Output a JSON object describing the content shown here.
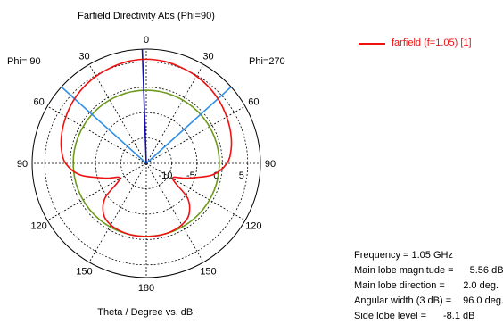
{
  "chart_data": {
    "type": "polar",
    "title": "Farfield Directivity Abs (Phi=90)",
    "xlabel": "Theta / Degree vs. dBi",
    "phi_left_label": "Phi= 90",
    "phi_right_label": "Phi=270",
    "angle_ticks": [
      "0",
      "30",
      "60",
      "90",
      "120",
      "150",
      "180",
      "150",
      "120",
      "90",
      "60",
      "30"
    ],
    "radial_ticks": [
      "-10",
      "-5",
      "0",
      "5"
    ],
    "r_range_dBi": [
      -15,
      7.5
    ],
    "series": [
      {
        "name": "farfield (f=1.05) [1]",
        "color": "#ee1111",
        "theta_deg": [
          0,
          10,
          20,
          30,
          40,
          50,
          60,
          70,
          80,
          90,
          100,
          110,
          120,
          130,
          140,
          150,
          160,
          170,
          180,
          190,
          200,
          210,
          220,
          230,
          240,
          250,
          260,
          270,
          280,
          290,
          300,
          310,
          320,
          330,
          340,
          350
        ],
        "dBi": [
          5.5,
          5.4,
          5.1,
          4.8,
          4.4,
          3.9,
          3.3,
          2.7,
          2.0,
          0.9,
          -1.8,
          -6.5,
          -9.0,
          -4.4,
          -1.9,
          -1.0,
          -0.7,
          -0.6,
          -0.6,
          -0.6,
          -0.7,
          -1.0,
          -1.9,
          -4.4,
          -9.0,
          -6.5,
          -1.8,
          0.9,
          2.0,
          2.7,
          3.3,
          3.9,
          4.4,
          4.8,
          5.1,
          5.4
        ]
      }
    ],
    "reference_circle_dBi": -0.6,
    "reference_circle_color": "#6e9a1c",
    "main_lobe_direction_deg": 2.0,
    "main_lobe_color": "#1111aa",
    "beamwidth_edges_deg": [
      -48,
      48
    ],
    "beamwidth_color": "#2f8fe6",
    "grid": true
  },
  "info": {
    "frequency_label": "Frequency = 1.05 GHz",
    "magnitude_label": "Main lobe magnitude =",
    "magnitude_value": "5.56 dBi",
    "direction_label": "Main lobe direction =",
    "direction_value": "2.0 deg.",
    "width_label": "Angular width (3 dB) =",
    "width_value": "96.0 deg.",
    "sidelobe_label": "Side lobe level =",
    "sidelobe_value": "-8.1 dB"
  }
}
